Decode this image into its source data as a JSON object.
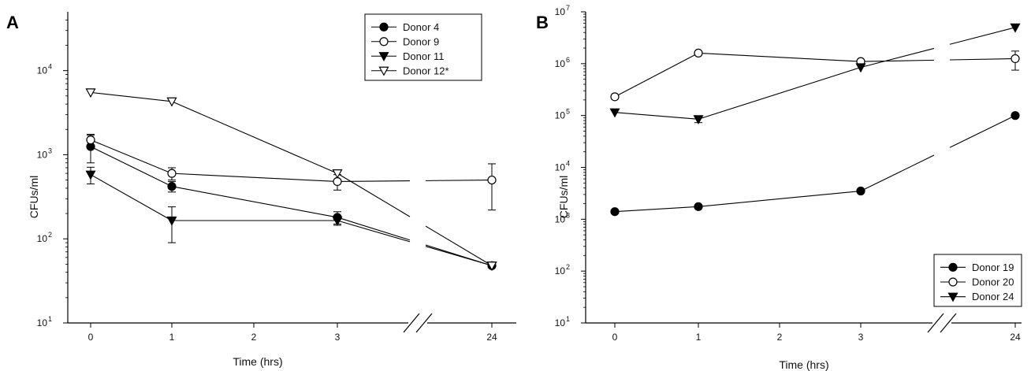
{
  "chart_data": [
    {
      "type": "line",
      "panel_label": "A",
      "xlabel": "Time (hrs)",
      "ylabel": "CFUs/ml",
      "x_ticks": [
        "0",
        "1",
        "2",
        "3",
        "24"
      ],
      "y_scale": "log",
      "ylim": [
        10,
        50000
      ],
      "y_ticks": [
        {
          "base": "10",
          "exp": "1"
        },
        {
          "base": "10",
          "exp": "2"
        },
        {
          "base": "10",
          "exp": "3"
        },
        {
          "base": "10",
          "exp": "4"
        }
      ],
      "axis_break": "between 3 and 24",
      "legend_position": "top-right",
      "series": [
        {
          "name": "Donor 4",
          "marker": "filled-circle",
          "x": [
            "0",
            "1",
            "3",
            "24"
          ],
          "y": [
            1250,
            420,
            180,
            48
          ],
          "err": [
            450,
            60,
            30,
            0
          ]
        },
        {
          "name": "Donor 9",
          "marker": "open-circle",
          "x": [
            "0",
            "1",
            "3",
            "24"
          ],
          "y": [
            1500,
            600,
            480,
            500
          ],
          "err": [
            250,
            100,
            100,
            280
          ]
        },
        {
          "name": "Donor 11",
          "marker": "filled-down-triangle",
          "x": [
            "0",
            "1",
            "3",
            "24"
          ],
          "y": [
            580,
            165,
            165,
            48
          ],
          "err": [
            130,
            75,
            20,
            0
          ]
        },
        {
          "name": "Donor 12*",
          "marker": "open-down-triangle",
          "x": [
            "0",
            "1",
            "3",
            "24"
          ],
          "y": [
            5500,
            4300,
            600,
            48
          ],
          "err": [
            0,
            0,
            0,
            0
          ]
        }
      ]
    },
    {
      "type": "line",
      "panel_label": "B",
      "xlabel": "Time (hrs)",
      "ylabel": "CFUs/ml",
      "x_ticks": [
        "0",
        "1",
        "2",
        "3",
        "24"
      ],
      "y_scale": "log",
      "ylim": [
        10,
        10000000
      ],
      "y_ticks": [
        {
          "base": "10",
          "exp": "1"
        },
        {
          "base": "10",
          "exp": "2"
        },
        {
          "base": "10",
          "exp": "3"
        },
        {
          "base": "10",
          "exp": "4"
        },
        {
          "base": "10",
          "exp": "5"
        },
        {
          "base": "10",
          "exp": "6"
        },
        {
          "base": "10",
          "exp": "7"
        }
      ],
      "axis_break": "between 3 and 24",
      "legend_position": "bottom-right",
      "series": [
        {
          "name": "Donor 19",
          "marker": "filled-circle",
          "x": [
            "0",
            "1",
            "3",
            "24"
          ],
          "y": [
            1400,
            1750,
            3500,
            100000
          ],
          "err": [
            0,
            0,
            0,
            0
          ]
        },
        {
          "name": "Donor 20",
          "marker": "open-circle",
          "x": [
            "0",
            "1",
            "3",
            "24"
          ],
          "y": [
            230000,
            1600000,
            1100000,
            1250000
          ],
          "err": [
            0,
            0,
            0,
            500000
          ]
        },
        {
          "name": "Donor 24",
          "marker": "filled-down-triangle",
          "x": [
            "0",
            "1",
            "3",
            "24"
          ],
          "y": [
            115000,
            85000,
            850000,
            5000000
          ],
          "err": [
            0,
            12000,
            0,
            0
          ]
        }
      ]
    }
  ]
}
